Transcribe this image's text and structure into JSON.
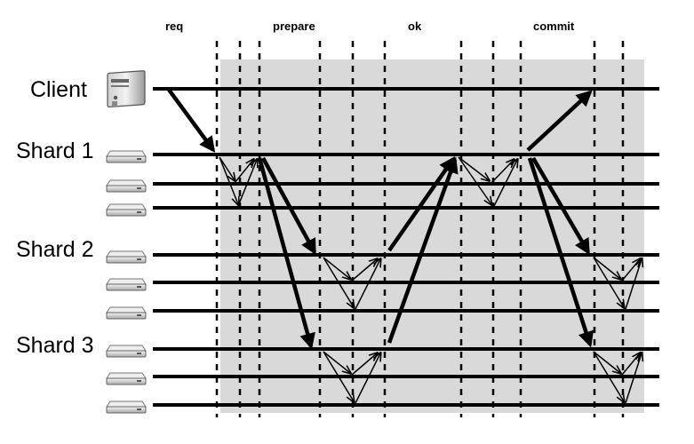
{
  "phases": [
    {
      "id": "req",
      "label": "req"
    },
    {
      "id": "prepare",
      "label": "prepare"
    },
    {
      "id": "ok",
      "label": "ok"
    },
    {
      "id": "commit",
      "label": "commit"
    }
  ],
  "nodes": [
    {
      "id": "client",
      "label": "Client",
      "icon": "server-tower-icon"
    },
    {
      "id": "shard1",
      "label": "Shard 1",
      "icon": "server-rack-icon"
    },
    {
      "id": "shard2",
      "label": "Shard 2",
      "icon": "server-rack-icon"
    },
    {
      "id": "shard3",
      "label": "Shard 3",
      "icon": "server-rack-icon"
    }
  ],
  "colors": {
    "background_band": "#d8d8d8",
    "line": "#000000"
  }
}
